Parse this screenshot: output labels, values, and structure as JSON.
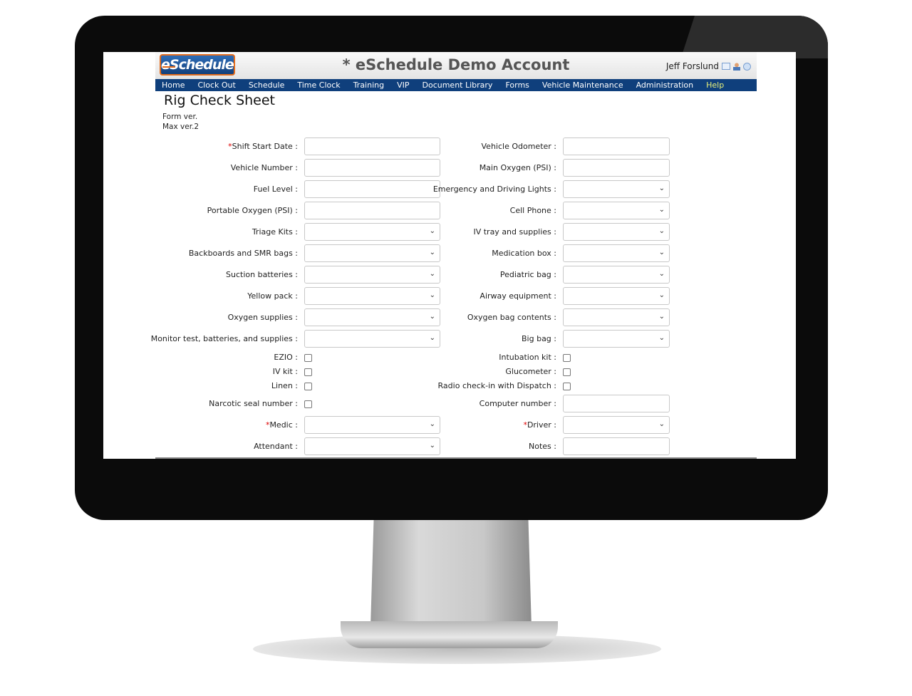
{
  "header": {
    "logo_text": "eSchedule",
    "app_title": "* eSchedule Demo Account",
    "user_name": "Jeff Forslund"
  },
  "nav": [
    "Home",
    "Clock Out",
    "Schedule",
    "Time Clock",
    "Training",
    "VIP",
    "Document Library",
    "Forms",
    "Vehicle Maintenance",
    "Administration",
    "Help"
  ],
  "page": {
    "title": "Rig Check Sheet",
    "form_version": "Form ver.",
    "max_version": "Max ver.2"
  },
  "rows": [
    {
      "left": {
        "label": "Shift Start Date :",
        "type": "text",
        "required": true
      },
      "right": {
        "label": "Vehicle Odometer :",
        "type": "text"
      }
    },
    {
      "left": {
        "label": "Vehicle Number :",
        "type": "text"
      },
      "right": {
        "label": "Main Oxygen (PSI) :",
        "type": "text"
      }
    },
    {
      "left": {
        "label": "Fuel Level :",
        "type": "text"
      },
      "right": {
        "label": "Emergency and Driving Lights :",
        "type": "select"
      }
    },
    {
      "left": {
        "label": "Portable Oxygen (PSI) :",
        "type": "text"
      },
      "right": {
        "label": "Cell Phone :",
        "type": "select"
      }
    },
    {
      "left": {
        "label": "Triage Kits :",
        "type": "select"
      },
      "right": {
        "label": "IV tray and supplies :",
        "type": "select"
      }
    },
    {
      "left": {
        "label": "Backboards and SMR bags :",
        "type": "select"
      },
      "right": {
        "label": "Medication box :",
        "type": "select"
      }
    },
    {
      "left": {
        "label": "Suction batteries :",
        "type": "select"
      },
      "right": {
        "label": "Pediatric bag :",
        "type": "select"
      }
    },
    {
      "left": {
        "label": "Yellow pack :",
        "type": "select"
      },
      "right": {
        "label": "Airway equipment :",
        "type": "select"
      }
    },
    {
      "left": {
        "label": "Oxygen supplies :",
        "type": "select"
      },
      "right": {
        "label": "Oxygen bag contents :",
        "type": "select"
      }
    },
    {
      "left": {
        "label": "Monitor test, batteries, and supplies :",
        "type": "select"
      },
      "right": {
        "label": "Big bag :",
        "type": "select"
      }
    },
    {
      "left": {
        "label": "EZIO :",
        "type": "checkbox"
      },
      "right": {
        "label": "Intubation kit :",
        "type": "checkbox"
      }
    },
    {
      "left": {
        "label": "IV kit :",
        "type": "checkbox"
      },
      "right": {
        "label": "Glucometer :",
        "type": "checkbox"
      }
    },
    {
      "left": {
        "label": "Linen :",
        "type": "checkbox"
      },
      "right": {
        "label": "Radio check-in with Dispatch :",
        "type": "checkbox"
      }
    },
    {
      "left": {
        "label": "Narcotic seal number :",
        "type": "checkbox"
      },
      "right": {
        "label": "Computer number :",
        "type": "text"
      }
    },
    {
      "left": {
        "label": "Medic :",
        "type": "select",
        "required": true
      },
      "right": {
        "label": "Driver :",
        "type": "select",
        "required": true
      }
    },
    {
      "left": {
        "label": "Attendant :",
        "type": "select"
      },
      "right": {
        "label": "Notes :",
        "type": "text"
      }
    }
  ],
  "colors": {
    "nav_bg": "#0f3f7c",
    "logo_border": "#e36c1d",
    "required": "#dd0000",
    "help_link": "#e7f07a"
  }
}
